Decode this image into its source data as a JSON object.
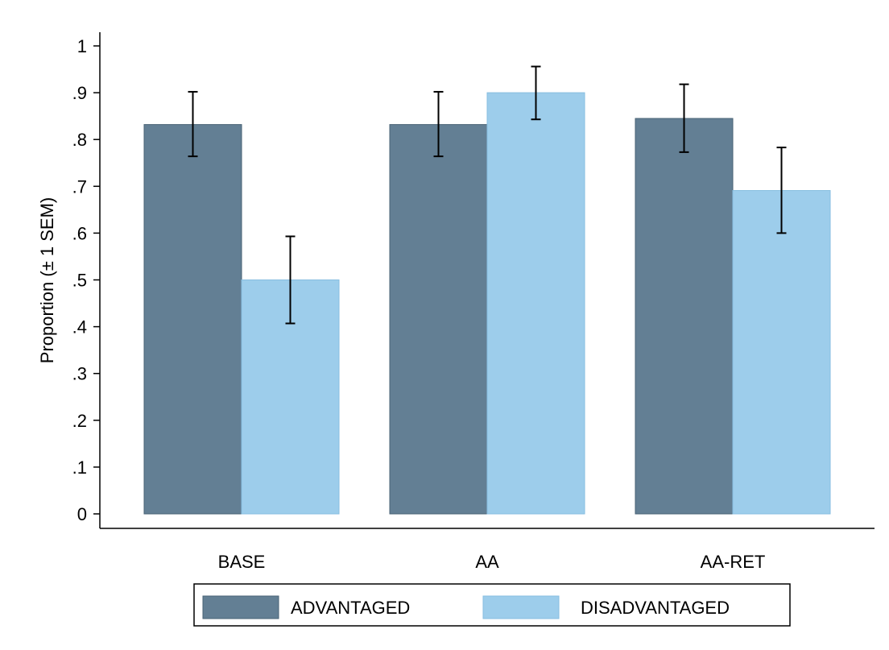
{
  "chart_data": {
    "type": "bar",
    "title": "",
    "xlabel": "",
    "ylabel": "Proportion (± 1 SEM)",
    "ylim": [
      0,
      1
    ],
    "yticks": [
      0,
      0.1,
      0.2,
      0.3,
      0.4,
      0.5,
      0.6,
      0.7,
      0.8,
      0.9,
      1
    ],
    "ytick_labels": [
      "0",
      ".1",
      ".2",
      ".3",
      ".4",
      ".5",
      ".6",
      ".7",
      ".8",
      ".9",
      "1"
    ],
    "categories": [
      "BASE",
      "AA",
      "AA-RET"
    ],
    "series": [
      {
        "name": "ADVANTAGED",
        "color": "#637f94",
        "values": [
          0.832,
          0.832,
          0.845
        ],
        "error_low": [
          0.764,
          0.764,
          0.773
        ],
        "error_high": [
          0.902,
          0.902,
          0.918
        ]
      },
      {
        "name": "DISADVANTAGED",
        "color": "#9dcdeb",
        "values": [
          0.5,
          0.9,
          0.691
        ],
        "error_low": [
          0.407,
          0.843,
          0.6
        ],
        "error_high": [
          0.593,
          0.956,
          0.783
        ]
      }
    ],
    "grid": false,
    "legend_position": "bottom"
  }
}
